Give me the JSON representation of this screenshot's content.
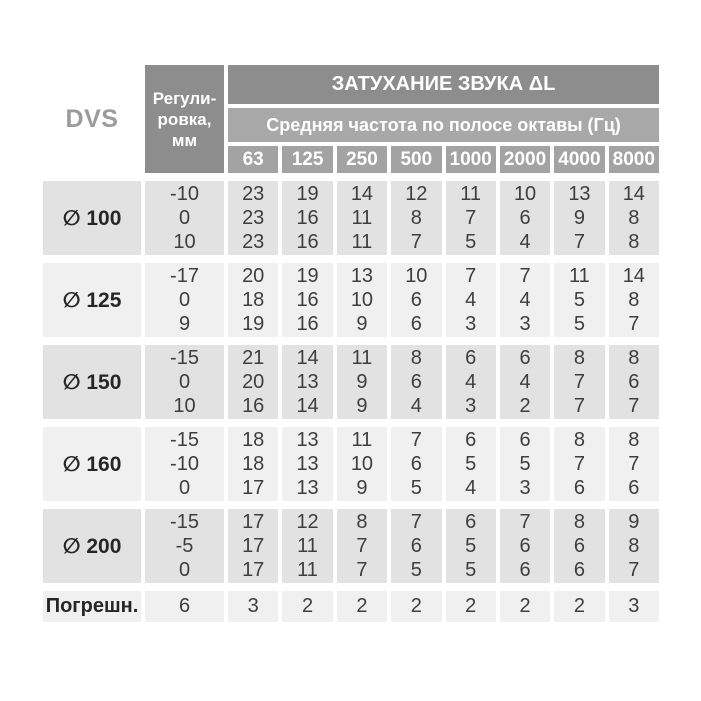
{
  "corner_label": "DVS",
  "header": {
    "regulation_label_lines": [
      "Регули-",
      "ровка,",
      "мм"
    ],
    "attenuation_title": "ЗАТУХАНИЕ ЗВУКА ΔL",
    "frequency_subtitle": "Средняя частота по полосе октавы (Гц)",
    "frequencies": [
      "63",
      "125",
      "250",
      "500",
      "1000",
      "2000",
      "4000",
      "8000"
    ]
  },
  "groups": [
    {
      "diameter_label": "∅ 100",
      "regulation": [
        "-10",
        "0",
        "10"
      ],
      "rows": [
        [
          23,
          19,
          14,
          12,
          11,
          10,
          13,
          14
        ],
        [
          23,
          16,
          11,
          8,
          7,
          6,
          9,
          8
        ],
        [
          23,
          16,
          11,
          7,
          5,
          4,
          7,
          8
        ]
      ]
    },
    {
      "diameter_label": "∅ 125",
      "regulation": [
        "-17",
        "0",
        "9"
      ],
      "rows": [
        [
          20,
          19,
          13,
          10,
          7,
          7,
          11,
          14
        ],
        [
          18,
          16,
          10,
          6,
          4,
          4,
          5,
          8
        ],
        [
          19,
          16,
          9,
          6,
          3,
          3,
          5,
          7
        ]
      ]
    },
    {
      "diameter_label": "∅ 150",
      "regulation": [
        "-15",
        "0",
        "10"
      ],
      "rows": [
        [
          21,
          14,
          11,
          8,
          6,
          6,
          8,
          8
        ],
        [
          20,
          13,
          9,
          6,
          4,
          4,
          7,
          6
        ],
        [
          16,
          14,
          9,
          4,
          3,
          2,
          7,
          7
        ]
      ]
    },
    {
      "diameter_label": "∅ 160",
      "regulation": [
        "-15",
        "-10",
        "0"
      ],
      "rows": [
        [
          18,
          13,
          11,
          7,
          6,
          6,
          8,
          8
        ],
        [
          18,
          13,
          10,
          6,
          5,
          5,
          7,
          7
        ],
        [
          17,
          13,
          9,
          5,
          4,
          3,
          6,
          6
        ]
      ]
    },
    {
      "diameter_label": "∅ 200",
      "regulation": [
        "-15",
        "-5",
        "0"
      ],
      "rows": [
        [
          17,
          12,
          8,
          7,
          6,
          7,
          8,
          9
        ],
        [
          17,
          11,
          7,
          6,
          5,
          6,
          6,
          8
        ],
        [
          17,
          11,
          7,
          5,
          5,
          6,
          6,
          7
        ]
      ]
    }
  ],
  "error_row": {
    "label": "Погрешн.",
    "regulation_value": "6",
    "values": [
      3,
      2,
      2,
      2,
      2,
      2,
      2,
      3
    ]
  },
  "colors": {
    "header_dark": "#8d8d8d",
    "header_mid": "#a8a8a8",
    "header_freq": "#a3a3a3",
    "group_dark": "#e2e2e2",
    "group_light": "#f0f0f0",
    "error_row_bg": "#f0f0f0",
    "text_dark": "#3e3e3e",
    "text_white": "#ffffff",
    "dvs_text": "#9b9b9b"
  }
}
